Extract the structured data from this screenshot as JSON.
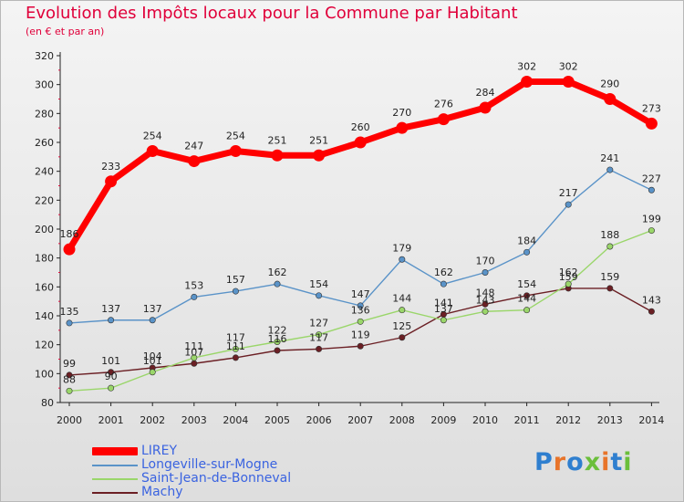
{
  "title": "Evolution des Impôts locaux pour la Commune par Habitant",
  "subtitle": "(en € et par an)",
  "brand": {
    "text": "Proxiti",
    "colors": [
      "#2f7fcf",
      "#e8742a",
      "#2f7fcf",
      "#6bbf3b",
      "#e8742a",
      "#2f7fcf",
      "#6bbf3b"
    ]
  },
  "chart_data": {
    "type": "line",
    "title": "Evolution des Impôts locaux pour la Commune par Habitant",
    "subtitle": "(en € et par an)",
    "xlabel": "",
    "ylabel": "",
    "ylim": [
      80,
      320
    ],
    "yticks": [
      80,
      100,
      120,
      140,
      160,
      180,
      200,
      220,
      240,
      260,
      280,
      300,
      320
    ],
    "grid": false,
    "legend_position": "bottom-left",
    "x": [
      "2000",
      "2001",
      "2002",
      "2003",
      "2004",
      "2005",
      "2006",
      "2007",
      "2008",
      "2009",
      "2010",
      "2011",
      "2012",
      "2013",
      "2014"
    ],
    "series": [
      {
        "name": "LIREY",
        "color": "#ff0000",
        "values": [
          186,
          233,
          254,
          247,
          254,
          251,
          251,
          260,
          270,
          276,
          284,
          302,
          302,
          290,
          273
        ]
      },
      {
        "name": "Longeville-sur-Mogne",
        "color": "#5a93c8",
        "values": [
          135,
          137,
          137,
          153,
          157,
          162,
          154,
          147,
          179,
          162,
          170,
          184,
          217,
          241,
          227
        ]
      },
      {
        "name": "Saint-Jean-de-Bonneval",
        "color": "#9ad66a",
        "values": [
          88,
          90,
          101,
          111,
          117,
          122,
          127,
          136,
          144,
          137,
          143,
          144,
          162,
          188,
          199
        ]
      },
      {
        "name": "Machy",
        "color": "#6b1f24",
        "values": [
          99,
          101,
          104,
          107,
          111,
          116,
          117,
          119,
          125,
          141,
          148,
          154,
          159,
          159,
          143
        ]
      }
    ]
  }
}
